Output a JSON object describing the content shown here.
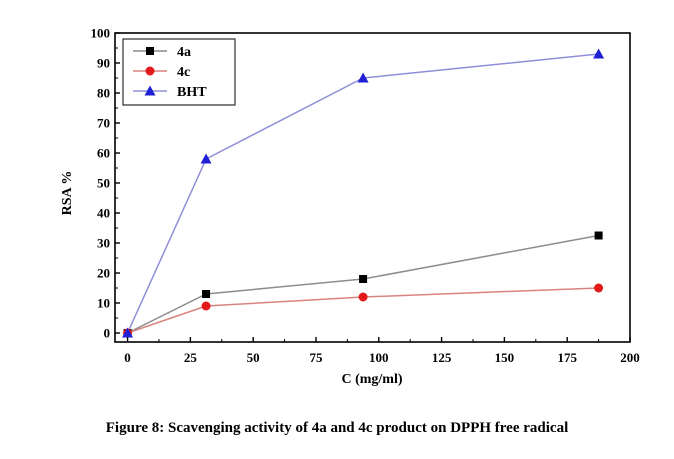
{
  "chart_data": {
    "type": "line",
    "xlabel": "C (mg/ml)",
    "ylabel": "RSA %",
    "xlim": [
      -5,
      200
    ],
    "ylim": [
      -3,
      100
    ],
    "xticks": [
      0,
      25,
      50,
      75,
      100,
      125,
      150,
      175,
      200
    ],
    "yticks": [
      0,
      10,
      20,
      30,
      40,
      50,
      60,
      70,
      80,
      90,
      100
    ],
    "grid": false,
    "legend_position": "top-left",
    "series": [
      {
        "name": "4a",
        "color": "#000000",
        "line_color": "#8c8c8c",
        "marker": "square",
        "x": [
          0,
          31.25,
          93.75,
          187.5
        ],
        "y": [
          0,
          13,
          18,
          32.5
        ]
      },
      {
        "name": "4c",
        "color": "#e31a1c",
        "line_color": "#d9837f",
        "marker": "circle",
        "x": [
          0,
          31.25,
          93.75,
          187.5
        ],
        "y": [
          0,
          9,
          12,
          15
        ]
      },
      {
        "name": "BHT",
        "color": "#1f1fd6",
        "line_color": "#8f8fd9",
        "marker": "triangle",
        "x": [
          0,
          31.25,
          93.75,
          187.5
        ],
        "y": [
          0,
          58,
          85,
          93
        ]
      }
    ]
  },
  "caption": "Figure 8: Scavenging activity of 4a and 4c product on DPPH free radical"
}
